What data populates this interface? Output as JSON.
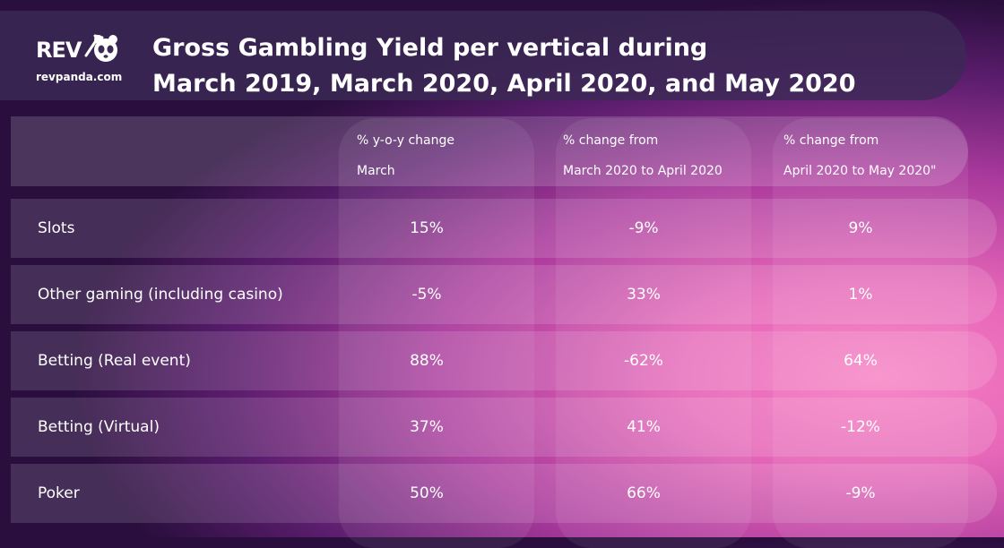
{
  "logo": {
    "brand": "REV",
    "url": "revpanda.com"
  },
  "chart_data": {
    "type": "table",
    "title_line1": "Gross Gambling Yield per vertical during",
    "title_line2": "March 2019, March 2020, April 2020, and May 2020",
    "columns": [
      {
        "line1": "% y-o-y change",
        "line2": "March"
      },
      {
        "line1": "% change from",
        "line2": "March 2020 to April 2020"
      },
      {
        "line1": "% change from",
        "line2": "April 2020 to May 2020\""
      }
    ],
    "rows": [
      {
        "label": "Slots",
        "values": [
          "15%",
          "-9%",
          "9%"
        ]
      },
      {
        "label": "Other gaming (including casino)",
        "values": [
          "-5%",
          "33%",
          "1%"
        ]
      },
      {
        "label": "Betting (Real event)",
        "values": [
          "88%",
          "-62%",
          "64%"
        ]
      },
      {
        "label": "Betting (Virtual)",
        "values": [
          "37%",
          "41%",
          "-12%"
        ]
      },
      {
        "label": "Poker",
        "values": [
          "50%",
          "66%",
          "-9%"
        ]
      }
    ]
  }
}
